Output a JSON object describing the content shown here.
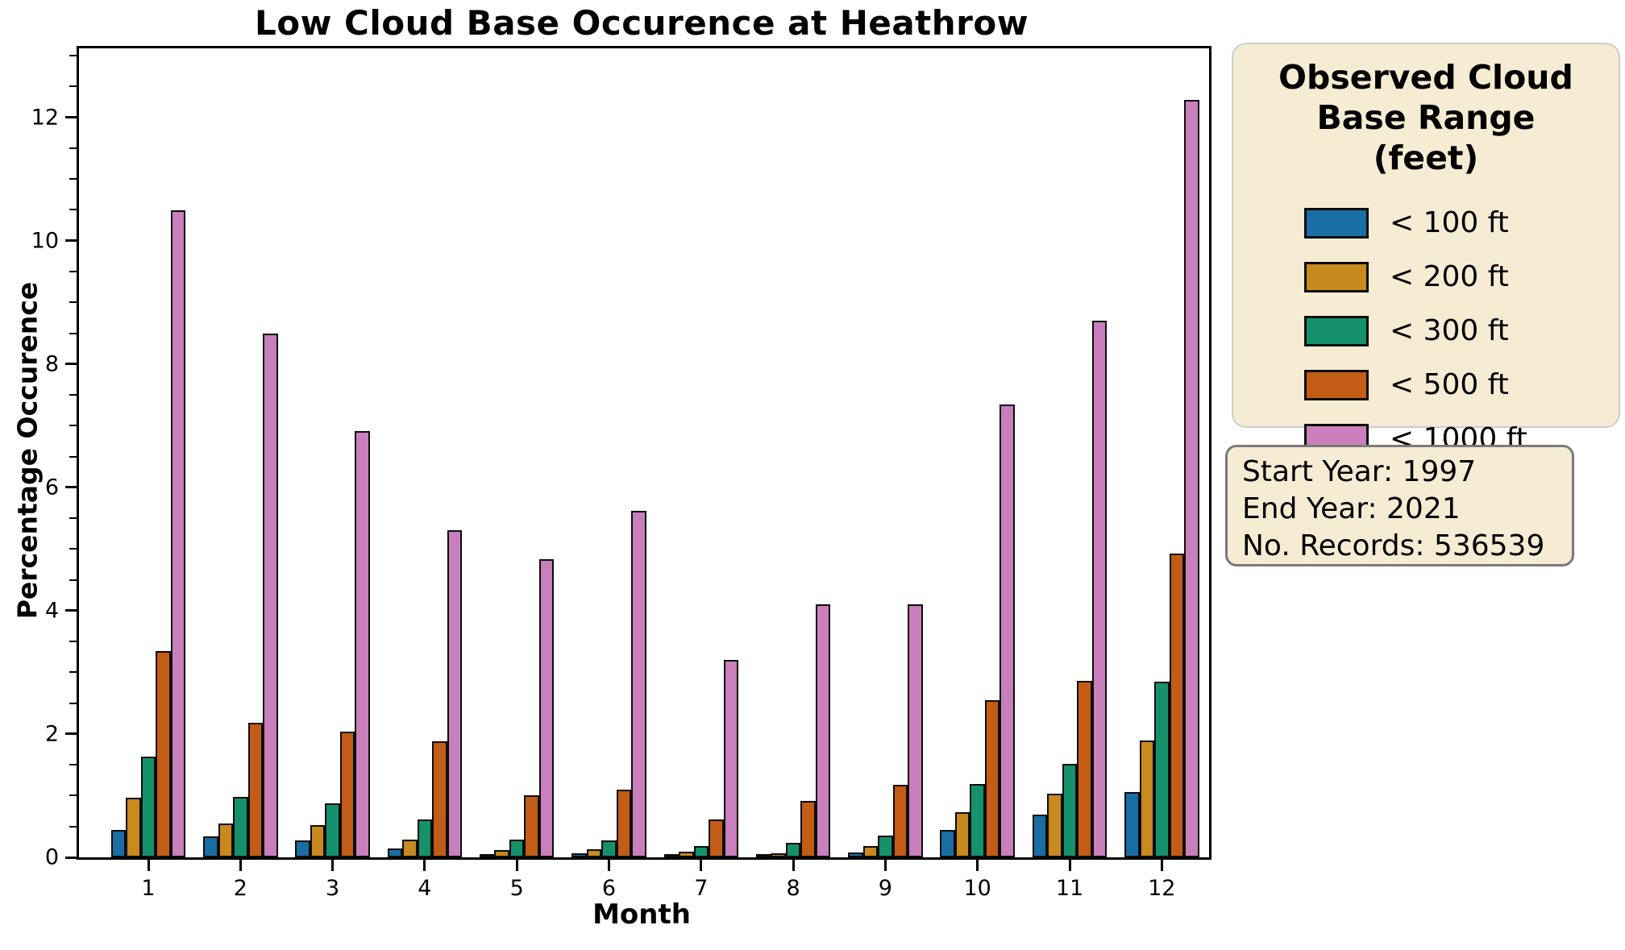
{
  "figure": {
    "title": "Low Cloud Base Occurence at Heathrow",
    "xlabel": "Month",
    "ylabel": "Percentage Occurence"
  },
  "legend": {
    "title": "Observed Cloud Base Range (feet)",
    "position": "outside-right"
  },
  "info_box": {
    "lines": [
      "Start Year: 1997",
      "End Year: 2021",
      "No. Records: 536539"
    ]
  },
  "chart_data": {
    "type": "bar",
    "title": "Low Cloud Base Occurence at Heathrow",
    "xlabel": "Month",
    "ylabel": "Percentage Occurence",
    "categories": [
      "1",
      "2",
      "3",
      "4",
      "5",
      "6",
      "7",
      "8",
      "9",
      "10",
      "11",
      "12"
    ],
    "series": [
      {
        "name": "< 100 ft",
        "key": "lt-100ft",
        "color": "#196ea3",
        "values": [
          0.45,
          0.34,
          0.28,
          0.14,
          0.05,
          0.07,
          0.03,
          0.02,
          0.08,
          0.44,
          0.69,
          1.06
        ]
      },
      {
        "name": "< 200 ft",
        "key": "lt-200ft",
        "color": "#c8891f",
        "values": [
          0.97,
          0.55,
          0.52,
          0.29,
          0.12,
          0.13,
          0.09,
          0.07,
          0.18,
          0.73,
          1.03,
          1.9
        ]
      },
      {
        "name": "< 300 ft",
        "key": "lt-300ft",
        "color": "#15916c",
        "values": [
          1.63,
          0.98,
          0.87,
          0.61,
          0.29,
          0.27,
          0.18,
          0.24,
          0.35,
          1.19,
          1.52,
          2.85
        ]
      },
      {
        "name": "< 500 ft",
        "key": "lt-500ft",
        "color": "#c35c16",
        "values": [
          3.35,
          2.18,
          2.04,
          1.88,
          1.0,
          1.1,
          0.61,
          0.92,
          1.17,
          2.55,
          2.86,
          4.93
        ]
      },
      {
        "name": "< 1000 ft",
        "key": "lt-1000ft",
        "color": "#c97fbb",
        "values": [
          10.5,
          8.5,
          6.91,
          5.31,
          4.84,
          5.62,
          3.2,
          4.1,
          4.1,
          7.35,
          8.7,
          12.28
        ]
      }
    ],
    "ylim": [
      0,
      13.12
    ],
    "yticks_major": [
      0,
      2,
      4,
      6,
      8,
      10,
      12
    ],
    "ytick_minor_step": 0.5,
    "grid": false,
    "bar_edge_color": "#0c0c0c",
    "legend_position": "outside-right"
  }
}
